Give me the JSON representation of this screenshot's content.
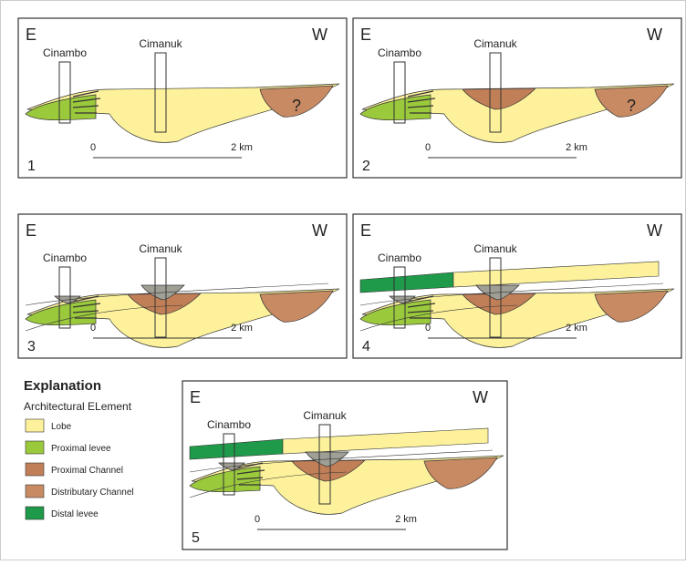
{
  "panels": [
    {
      "number": "1",
      "east": "E",
      "west": "W",
      "wells": [
        "Cinambo",
        "Cimanuk"
      ],
      "scale": [
        "0",
        "2 km"
      ],
      "unknown": "?"
    },
    {
      "number": "2",
      "east": "E",
      "west": "W",
      "wells": [
        "Cinambo",
        "Cimanuk"
      ],
      "scale": [
        "0",
        "2 km"
      ],
      "unknown": "?"
    },
    {
      "number": "3",
      "east": "E",
      "west": "W",
      "wells": [
        "Cinambo",
        "Cimanuk"
      ],
      "scale": [
        "0",
        "2 km"
      ]
    },
    {
      "number": "4",
      "east": "E",
      "west": "W",
      "wells": [
        "Cinambo",
        "Cimanuk"
      ],
      "scale": [
        "0",
        "2 km"
      ]
    },
    {
      "number": "5",
      "east": "E",
      "west": "W",
      "wells": [
        "Cinambo",
        "Cimanuk"
      ],
      "scale": [
        "0",
        "2 km"
      ]
    }
  ],
  "legend": {
    "title": "Explanation",
    "subtitle": "Architectural ELement",
    "items": [
      {
        "label": "Lobe",
        "color": "#fdf29b"
      },
      {
        "label": "Proximal levee",
        "color": "#9bc93c"
      },
      {
        "label": "Proximal Channel",
        "color": "#c17f57"
      },
      {
        "label": "Distributary Channel",
        "color": "#c88a63"
      },
      {
        "label": "Distal levee",
        "color": "#1f9a4a"
      }
    ]
  }
}
